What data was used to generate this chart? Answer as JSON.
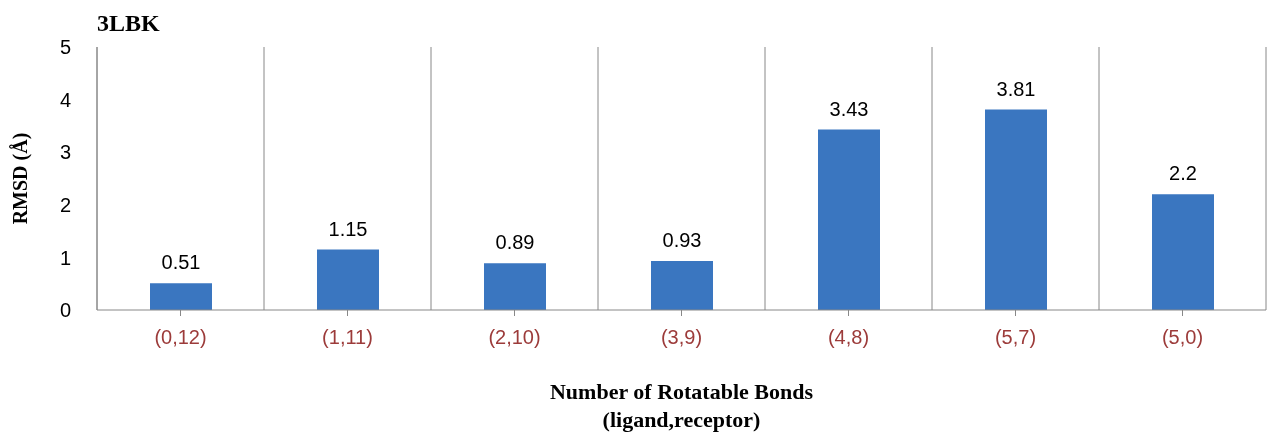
{
  "chart_data": {
    "type": "bar",
    "title": "3LBK",
    "xlabel": "Number of Rotatable Bonds\n(ligand,receptor)",
    "ylabel": "RMSD (Å)",
    "categories": [
      "(0,12)",
      "(1,11)",
      "(2,10)",
      "(3,9)",
      "(4,8)",
      "(5,7)",
      "(5,0)"
    ],
    "values": [
      0.51,
      1.15,
      0.89,
      0.93,
      3.43,
      3.81,
      2.2
    ],
    "color": "#3a76c0",
    "ylim": [
      0,
      5
    ],
    "yticks": [
      0,
      1,
      2,
      3,
      4,
      5
    ],
    "grid": "x",
    "data_labels": true
  }
}
